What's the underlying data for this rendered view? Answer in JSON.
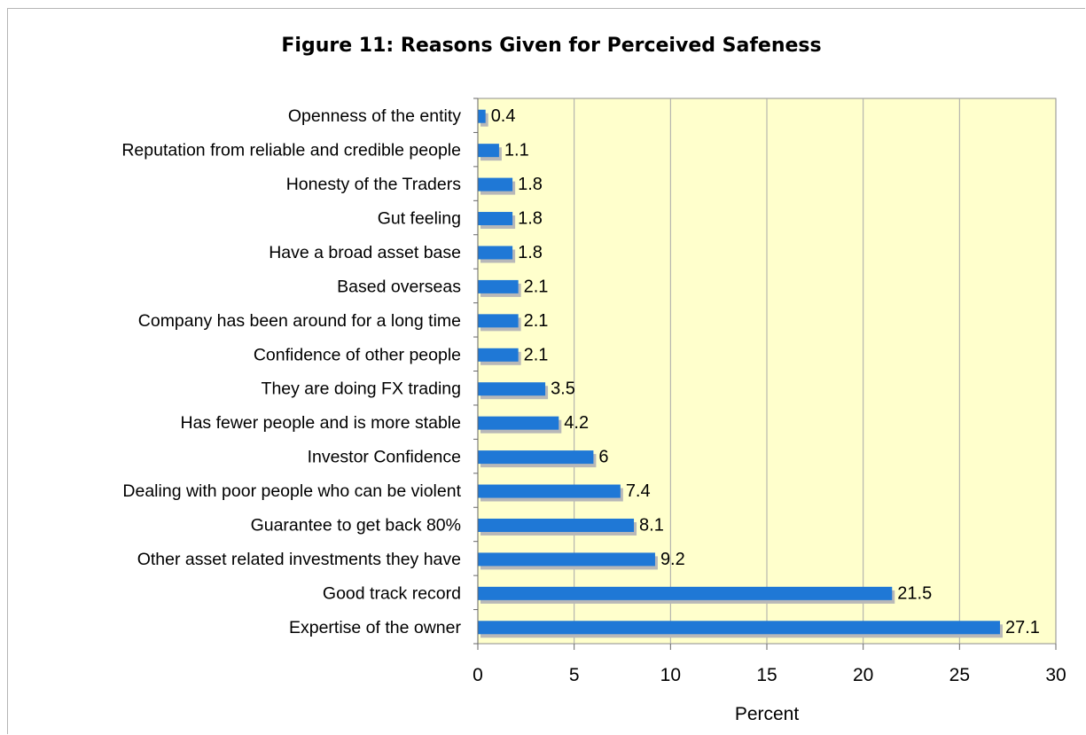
{
  "chart_data": {
    "type": "bar",
    "orientation": "horizontal",
    "title": "Figure 11: Reasons Given for Perceived Safeness",
    "xlabel": "Percent",
    "ylabel": "",
    "xlim": [
      0,
      30
    ],
    "xticks": [
      0,
      5,
      10,
      15,
      20,
      25,
      30
    ],
    "grid": true,
    "legend": "none",
    "colors": {
      "bar": "#1f78d6",
      "bar_shadow": "#b8b8b8",
      "plot_background": "#ffffcc",
      "grid": "#a8a8a8"
    },
    "categories": [
      "Openness of the entity",
      "Reputation from reliable and credible people",
      "Honesty of the Traders",
      "Gut feeling",
      "Have a broad asset base",
      "Based overseas",
      "Company has been around for a long time",
      "Confidence of other people",
      "They are doing FX trading",
      "Has fewer people and is more stable",
      "Investor Confidence",
      "Dealing with poor people who can be violent",
      "Guarantee to get back 80%",
      "Other asset related investments they have",
      "Good track record",
      "Expertise of the owner"
    ],
    "values": [
      0.4,
      1.1,
      1.8,
      1.8,
      1.8,
      2.1,
      2.1,
      2.1,
      3.5,
      4.2,
      6,
      7.4,
      8.1,
      9.2,
      21.5,
      27.1
    ],
    "value_labels": [
      "0.4",
      "1.1",
      "1.8",
      "1.8",
      "1.8",
      "2.1",
      "2.1",
      "2.1",
      "3.5",
      "4.2",
      "6",
      "7.4",
      "8.1",
      "9.2",
      "21.5",
      "27.1"
    ]
  }
}
